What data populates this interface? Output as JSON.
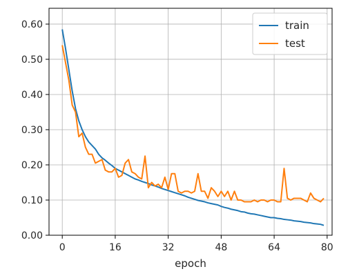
{
  "chart_data": {
    "type": "line",
    "xlabel": "epoch",
    "ylabel": "",
    "title": "",
    "xlim": [
      -4,
      81.5
    ],
    "ylim": [
      0.0,
      0.645
    ],
    "xticks": [
      0,
      16,
      32,
      48,
      64,
      80
    ],
    "yticks": [
      0.0,
      0.1,
      0.2,
      0.3,
      0.4,
      0.5,
      0.6
    ],
    "ytick_labels": [
      "0.00",
      "0.10",
      "0.20",
      "0.30",
      "0.40",
      "0.50",
      "0.60"
    ],
    "grid": true,
    "legend_position": "top-right",
    "x": [
      0,
      1,
      2,
      3,
      4,
      5,
      6,
      7,
      8,
      9,
      10,
      11,
      12,
      13,
      14,
      15,
      16,
      17,
      18,
      19,
      20,
      21,
      22,
      23,
      24,
      25,
      26,
      27,
      28,
      29,
      30,
      31,
      32,
      33,
      34,
      35,
      36,
      37,
      38,
      39,
      40,
      41,
      42,
      43,
      44,
      45,
      46,
      47,
      48,
      49,
      50,
      51,
      52,
      53,
      54,
      55,
      56,
      57,
      58,
      59,
      60,
      61,
      62,
      63,
      64,
      65,
      66,
      67,
      68,
      69,
      70,
      71,
      72,
      73,
      74,
      75,
      76,
      77,
      78,
      79
    ],
    "series": [
      {
        "name": "train",
        "color": "#1f77b4",
        "values": [
          0.585,
          0.53,
          0.47,
          0.41,
          0.36,
          0.325,
          0.3,
          0.28,
          0.265,
          0.255,
          0.245,
          0.23,
          0.22,
          0.213,
          0.205,
          0.198,
          0.19,
          0.185,
          0.18,
          0.175,
          0.17,
          0.165,
          0.16,
          0.157,
          0.153,
          0.15,
          0.147,
          0.143,
          0.14,
          0.137,
          0.133,
          0.13,
          0.127,
          0.124,
          0.121,
          0.118,
          0.115,
          0.112,
          0.108,
          0.105,
          0.102,
          0.099,
          0.097,
          0.095,
          0.092,
          0.09,
          0.088,
          0.086,
          0.082,
          0.079,
          0.077,
          0.074,
          0.072,
          0.07,
          0.067,
          0.066,
          0.063,
          0.061,
          0.06,
          0.058,
          0.056,
          0.054,
          0.052,
          0.05,
          0.05,
          0.048,
          0.047,
          0.045,
          0.044,
          0.043,
          0.041,
          0.04,
          0.039,
          0.037,
          0.036,
          0.035,
          0.033,
          0.032,
          0.031,
          0.028
        ]
      },
      {
        "name": "test",
        "color": "#ff7f0e",
        "values": [
          0.54,
          0.49,
          0.44,
          0.37,
          0.35,
          0.28,
          0.29,
          0.25,
          0.23,
          0.23,
          0.205,
          0.21,
          0.215,
          0.185,
          0.18,
          0.18,
          0.19,
          0.165,
          0.17,
          0.205,
          0.215,
          0.18,
          0.175,
          0.165,
          0.16,
          0.225,
          0.135,
          0.15,
          0.14,
          0.145,
          0.135,
          0.165,
          0.13,
          0.175,
          0.175,
          0.125,
          0.12,
          0.125,
          0.125,
          0.12,
          0.125,
          0.175,
          0.125,
          0.125,
          0.105,
          0.135,
          0.125,
          0.11,
          0.125,
          0.11,
          0.125,
          0.1,
          0.125,
          0.1,
          0.1,
          0.095,
          0.095,
          0.095,
          0.1,
          0.095,
          0.1,
          0.1,
          0.095,
          0.1,
          0.1,
          0.095,
          0.095,
          0.19,
          0.105,
          0.1,
          0.105,
          0.105,
          0.105,
          0.1,
          0.095,
          0.12,
          0.105,
          0.1,
          0.095,
          0.105
        ]
      }
    ]
  }
}
